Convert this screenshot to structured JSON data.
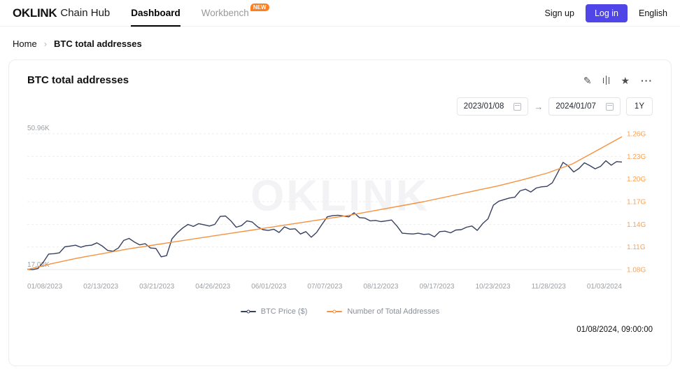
{
  "header": {
    "logo": "OKLINK",
    "product": "Chain Hub",
    "tabs": [
      {
        "label": "Dashboard"
      },
      {
        "label": "Workbench",
        "badge": "NEW"
      }
    ],
    "signup_label": "Sign up",
    "login_label": "Log in",
    "language_label": "English"
  },
  "breadcrumb": {
    "home": "Home",
    "separator": "›",
    "current": "BTC total addresses"
  },
  "card": {
    "title": "BTC total addresses",
    "watermark": "OKLINK",
    "date_from": "2023/01/08",
    "date_to": "2024/01/07",
    "arrow": "→",
    "range_label": "1Y",
    "timestamp": "01/08/2024, 09:00:00"
  },
  "icons": {
    "edit": "✎",
    "star": "★",
    "more": "···"
  },
  "chart_data": {
    "type": "line",
    "title": "BTC total addresses",
    "legend_position": "bottom",
    "grid": true,
    "x_labels": [
      "01/08/2023",
      "02/13/2023",
      "03/21/2023",
      "04/26/2023",
      "06/01/2023",
      "07/07/2023",
      "08/12/2023",
      "09/17/2023",
      "10/23/2023",
      "11/28/2023",
      "01/03/2024"
    ],
    "left_axis": {
      "top_label": "50.96K",
      "bottom_label": "17.02K",
      "min": 17.02,
      "max": 50.96,
      "unit": "K"
    },
    "right_axis": {
      "ticks": [
        "1.26G",
        "1.23G",
        "1.20G",
        "1.17G",
        "1.14G",
        "1.11G",
        "1.08G"
      ],
      "min": 1.08,
      "max": 1.26,
      "unit": "G",
      "color": "#f9a254"
    },
    "series": [
      {
        "name": "BTC Price ($)",
        "axis": "left",
        "color": "#38405f",
        "values": [
          17.1,
          17.0,
          17.3,
          18.9,
          20.9,
          21.0,
          21.2,
          22.7,
          22.9,
          23.1,
          22.6,
          23.0,
          23.1,
          23.7,
          22.9,
          21.8,
          21.6,
          22.4,
          24.3,
          24.8,
          23.9,
          23.2,
          23.5,
          22.4,
          22.3,
          20.2,
          20.5,
          24.7,
          26.2,
          27.4,
          28.3,
          27.8,
          28.5,
          28.2,
          27.9,
          28.3,
          30.3,
          30.4,
          29.2,
          27.6,
          28.0,
          29.2,
          28.9,
          27.7,
          27.0,
          26.8,
          27.1,
          26.3,
          27.7,
          27.1,
          27.2,
          25.9,
          26.5,
          25.1,
          26.3,
          28.3,
          30.2,
          30.5,
          30.6,
          30.4,
          30.2,
          31.2,
          30.0,
          29.9,
          29.2,
          29.3,
          29.0,
          29.2,
          29.4,
          27.9,
          26.1,
          26.0,
          25.9,
          26.1,
          25.8,
          25.9,
          25.2,
          26.5,
          26.6,
          26.2,
          26.9,
          27.0,
          27.6,
          27.9,
          26.8,
          28.5,
          29.7,
          33.1,
          34.1,
          34.5,
          34.9,
          35.1,
          36.7,
          37.1,
          36.4,
          37.4,
          37.7,
          37.8,
          38.7,
          41.2,
          43.8,
          42.9,
          41.4,
          42.3,
          43.7,
          43.0,
          42.2,
          42.8,
          44.2,
          43.1,
          44.0,
          43.9
        ]
      },
      {
        "name": "Number of Total Addresses",
        "axis": "right",
        "color": "#f7923f",
        "values": [
          1.08,
          1.088,
          1.095,
          1.101,
          1.107,
          1.112,
          1.117,
          1.122,
          1.127,
          1.132,
          1.137,
          1.142,
          1.147,
          1.152,
          1.158,
          1.164,
          1.17,
          1.177,
          1.184,
          1.191,
          1.199,
          1.208,
          1.22,
          1.238,
          1.256
        ]
      }
    ]
  }
}
